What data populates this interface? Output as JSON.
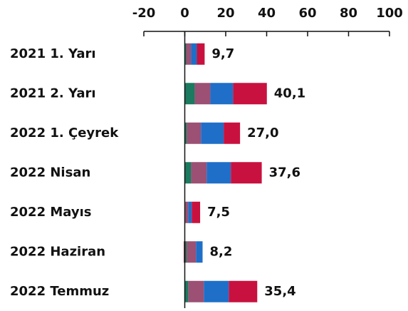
{
  "chart_data": {
    "type": "stacked_bar_horizontal",
    "categories": [
      "2021 1. Yarı",
      "2021 2. Yarı",
      "2022 1. Çeyrek",
      "2022 Nisan",
      "2022 Mayıs",
      "2022 Haziran",
      "2022 Temmuz"
    ],
    "series": [
      {
        "color": "#1b7a5f",
        "values": [
          0.7,
          4.9,
          1.0,
          3.1,
          0.3,
          1.0,
          1.7
        ]
      },
      {
        "color": "#9b5074",
        "values": [
          2.4,
          7.6,
          6.9,
          7.6,
          1.4,
          4.5,
          7.6
        ]
      },
      {
        "color": "#1f6fc8",
        "values": [
          2.8,
          11.1,
          11.1,
          11.8,
          1.7,
          3.2,
          12.2
        ]
      },
      {
        "color": "#c8113f",
        "values": [
          3.8,
          16.5,
          8.0,
          15.1,
          4.1,
          -0.5,
          13.9
        ]
      }
    ],
    "totals": [
      9.7,
      40.1,
      27.0,
      37.6,
      7.5,
      8.2,
      35.4
    ],
    "total_labels": [
      "9,7",
      "40,1",
      "27,0",
      "37,6",
      "7,5",
      "8,2",
      "35,4"
    ],
    "xlim": [
      -20,
      100
    ],
    "xticks": [
      -20,
      0,
      20,
      40,
      60,
      80,
      100
    ],
    "axis_position": "top"
  }
}
